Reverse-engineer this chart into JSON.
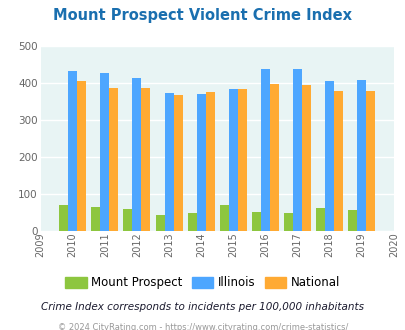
{
  "title": "Mount Prospect Violent Crime Index",
  "years": [
    2010,
    2011,
    2012,
    2013,
    2014,
    2015,
    2016,
    2017,
    2018,
    2019
  ],
  "mount_prospect": [
    70,
    65,
    60,
    42,
    50,
    70,
    52,
    50,
    62,
    58
  ],
  "illinois": [
    433,
    428,
    415,
    373,
    370,
    384,
    438,
    438,
    405,
    408
  ],
  "national": [
    405,
    388,
    388,
    367,
    375,
    384,
    397,
    394,
    380,
    379
  ],
  "color_mp": "#8dc63f",
  "color_il": "#4da6ff",
  "color_na": "#ffaa33",
  "bg_color": "#e8f4f4",
  "ylim": [
    0,
    500
  ],
  "yticks": [
    0,
    100,
    200,
    300,
    400,
    500
  ],
  "xlim": [
    2009,
    2020
  ],
  "subtitle": "Crime Index corresponds to incidents per 100,000 inhabitants",
  "footer": "© 2024 CityRating.com - https://www.cityrating.com/crime-statistics/",
  "title_color": "#1a6faf",
  "subtitle_color": "#1a1a2e",
  "footer_color": "#999999",
  "legend_labels": [
    "Mount Prospect",
    "Illinois",
    "National"
  ]
}
